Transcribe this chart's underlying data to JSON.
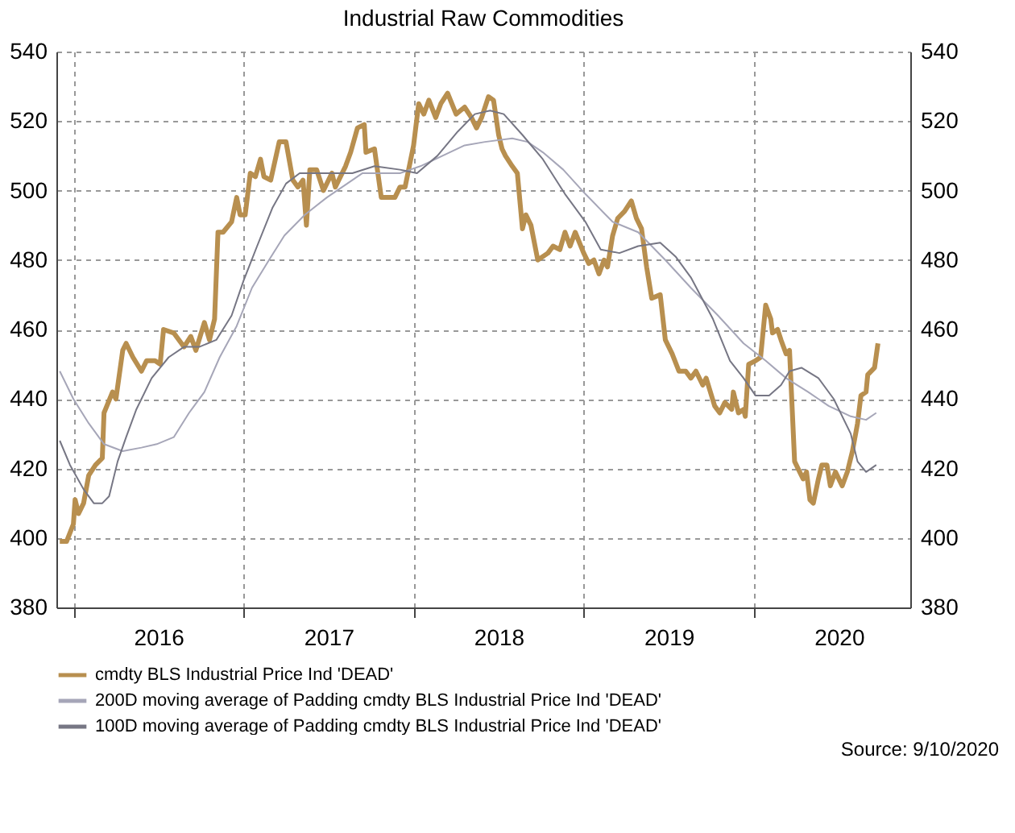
{
  "chart_data": {
    "type": "line",
    "title": "Industrial Raw Commodities",
    "xlim": [
      2015.9,
      2020.92
    ],
    "xticks": [
      {
        "value": 2016,
        "label": null
      },
      {
        "value": 2016.5,
        "label": "2016"
      },
      {
        "value": 2017,
        "label": null
      },
      {
        "value": 2017.5,
        "label": "2017"
      },
      {
        "value": 2018,
        "label": null
      },
      {
        "value": 2018.5,
        "label": "2018"
      },
      {
        "value": 2019,
        "label": null
      },
      {
        "value": 2019.5,
        "label": "2019"
      },
      {
        "value": 2020,
        "label": null
      },
      {
        "value": 2020.5,
        "label": "2020"
      }
    ],
    "ylim": [
      380,
      540
    ],
    "yticks": [
      380,
      400,
      420,
      440,
      460,
      480,
      500,
      520,
      540
    ],
    "y2lim": [
      380,
      540
    ],
    "y2ticks": [
      380,
      400,
      420,
      440,
      460,
      480,
      500,
      520,
      540
    ],
    "grid": true,
    "legend": "bottom",
    "line_style": "solid",
    "marker": "none",
    "annotations": [
      "Source: 9/10/2020"
    ],
    "series": [
      {
        "name": "cmdty BLS Industrial Price Ind 'DEAD'",
        "color": "#b88f4f",
        "x": [
          2015.92,
          2015.96,
          2016.0,
          2016.01,
          2016.03,
          2016.06,
          2016.09,
          2016.13,
          2016.17,
          2016.18,
          2016.23,
          2016.25,
          2016.29,
          2016.31,
          2016.35,
          2016.4,
          2016.43,
          2016.48,
          2016.51,
          2016.53,
          2016.59,
          2016.65,
          2016.69,
          2016.72,
          2016.77,
          2016.8,
          2016.83,
          2016.85,
          2016.88,
          2016.93,
          2016.96,
          2016.98,
          2017.01,
          2017.04,
          2017.07,
          2017.1,
          2017.12,
          2017.16,
          2017.21,
          2017.25,
          2017.29,
          2017.32,
          2017.35,
          2017.37,
          2017.39,
          2017.43,
          2017.47,
          2017.52,
          2017.54,
          2017.6,
          2017.63,
          2017.67,
          2017.71,
          2017.72,
          2017.77,
          2017.81,
          2017.89,
          2017.92,
          2017.95,
          2018.0,
          2018.03,
          2018.06,
          2018.09,
          2018.13,
          2018.16,
          2018.2,
          2018.25,
          2018.3,
          2018.34,
          2018.37,
          2018.4,
          2018.44,
          2018.47,
          2018.5,
          2018.52,
          2018.54,
          2018.58,
          2018.61,
          2018.64,
          2018.66,
          2018.69,
          2018.73,
          2018.79,
          2018.82,
          2018.86,
          2018.89,
          2018.92,
          2018.95,
          2019.0,
          2019.03,
          2019.06,
          2019.09,
          2019.12,
          2019.14,
          2019.17,
          2019.2,
          2019.24,
          2019.28,
          2019.31,
          2019.34,
          2019.37,
          2019.4,
          2019.45,
          2019.48,
          2019.52,
          2019.56,
          2019.6,
          2019.63,
          2019.66,
          2019.7,
          2019.72,
          2019.77,
          2019.8,
          2019.83,
          2019.87,
          2019.88,
          2019.91,
          2019.94,
          2019.95,
          2019.97,
          2020.01,
          2020.04,
          2020.07,
          2020.1,
          2020.11,
          2020.14,
          2020.16,
          2020.19,
          2020.21,
          2020.24,
          2020.27,
          2020.29,
          2020.31,
          2020.33,
          2020.35,
          2020.38,
          2020.4,
          2020.43,
          2020.45,
          2020.48,
          2020.52,
          2020.55,
          2020.58,
          2020.61,
          2020.63,
          2020.66,
          2020.67,
          2020.71,
          2020.73
        ],
        "values": [
          399,
          399,
          404,
          411,
          407,
          410,
          418,
          421,
          423,
          436,
          442,
          440,
          454,
          456,
          452,
          448,
          451,
          451,
          450,
          460,
          459,
          455,
          458,
          454,
          462,
          457,
          463,
          488,
          488,
          491,
          498,
          493,
          493,
          505,
          504,
          509,
          504,
          503,
          514,
          514,
          503,
          501,
          503,
          490,
          506,
          506,
          500,
          505,
          501,
          507,
          511,
          518,
          519,
          511,
          512,
          498,
          498,
          501,
          501,
          513,
          525,
          522,
          526,
          521,
          525,
          528,
          522,
          524,
          521,
          518,
          521,
          527,
          526,
          516,
          512,
          510,
          507,
          505,
          489,
          493,
          490,
          480,
          482,
          484,
          483,
          488,
          484,
          488,
          482,
          479,
          480,
          476,
          480,
          478,
          487,
          492,
          494,
          497,
          492,
          489,
          478,
          469,
          470,
          457,
          453,
          448,
          448,
          446,
          448,
          444,
          446,
          438,
          436,
          439,
          437,
          442,
          436,
          437,
          435,
          450,
          451,
          452,
          467,
          463,
          459,
          460,
          457,
          453,
          454,
          422,
          419,
          417,
          419,
          411,
          410,
          417,
          421,
          421,
          415,
          419,
          415,
          419,
          425,
          433,
          441,
          442,
          447,
          449,
          456
        ]
      },
      {
        "name": "200D moving average of Padding cmdty BLS Industrial Price Ind 'DEAD'",
        "color": "#a6a6b8",
        "x": [
          2015.92,
          2016.0,
          2016.09,
          2016.18,
          2016.29,
          2016.4,
          2016.49,
          2016.59,
          2016.68,
          2016.77,
          2016.86,
          2016.96,
          2017.05,
          2017.15,
          2017.24,
          2017.36,
          2017.49,
          2017.61,
          2017.7,
          2017.77,
          2017.92,
          2018.04,
          2018.17,
          2018.3,
          2018.42,
          2018.58,
          2018.67,
          2018.76,
          2018.88,
          2019.01,
          2019.13,
          2019.17,
          2019.32,
          2019.48,
          2019.63,
          2019.79,
          2019.94,
          2020.07,
          2020.19,
          2020.32,
          2020.44,
          2020.57,
          2020.66,
          2020.72
        ],
        "values": [
          448,
          440,
          433,
          427,
          425,
          426,
          427,
          429,
          436,
          442,
          452,
          461,
          472,
          480,
          487,
          493,
          498,
          502,
          505,
          505,
          505,
          507,
          510,
          513,
          514,
          515,
          514,
          511,
          506,
          499,
          493,
          491,
          488,
          480,
          472,
          464,
          456,
          451,
          446,
          442,
          438,
          435,
          434,
          436
        ]
      },
      {
        "name": "100D moving average of Padding cmdty BLS Industrial Price Ind 'DEAD'",
        "color": "#767684",
        "x": [
          2015.92,
          2015.98,
          2016.06,
          2016.12,
          2016.17,
          2016.21,
          2016.26,
          2016.31,
          2016.37,
          2016.46,
          2016.56,
          2016.65,
          2016.74,
          2016.84,
          2016.93,
          2017.0,
          2017.08,
          2017.17,
          2017.25,
          2017.33,
          2017.43,
          2017.64,
          2017.77,
          2017.92,
          2018.02,
          2018.14,
          2018.26,
          2018.36,
          2018.45,
          2018.53,
          2018.64,
          2018.76,
          2018.89,
          2019.01,
          2019.1,
          2019.21,
          2019.32,
          2019.45,
          2019.54,
          2019.63,
          2019.76,
          2019.86,
          2019.94,
          2020.01,
          2020.09,
          2020.16,
          2020.21,
          2020.28,
          2020.38,
          2020.47,
          2020.57,
          2020.61,
          2020.66,
          2020.72
        ],
        "values": [
          428,
          421,
          414,
          410,
          410,
          412,
          422,
          429,
          437,
          446,
          452,
          455,
          455,
          457,
          464,
          474,
          484,
          495,
          502,
          505,
          505,
          505,
          507,
          506,
          505,
          510,
          517,
          522,
          523,
          522,
          516,
          509,
          499,
          491,
          483,
          482,
          484,
          485,
          481,
          475,
          463,
          451,
          446,
          441,
          441,
          444,
          448,
          449,
          446,
          440,
          430,
          422,
          419,
          421
        ]
      }
    ]
  }
}
